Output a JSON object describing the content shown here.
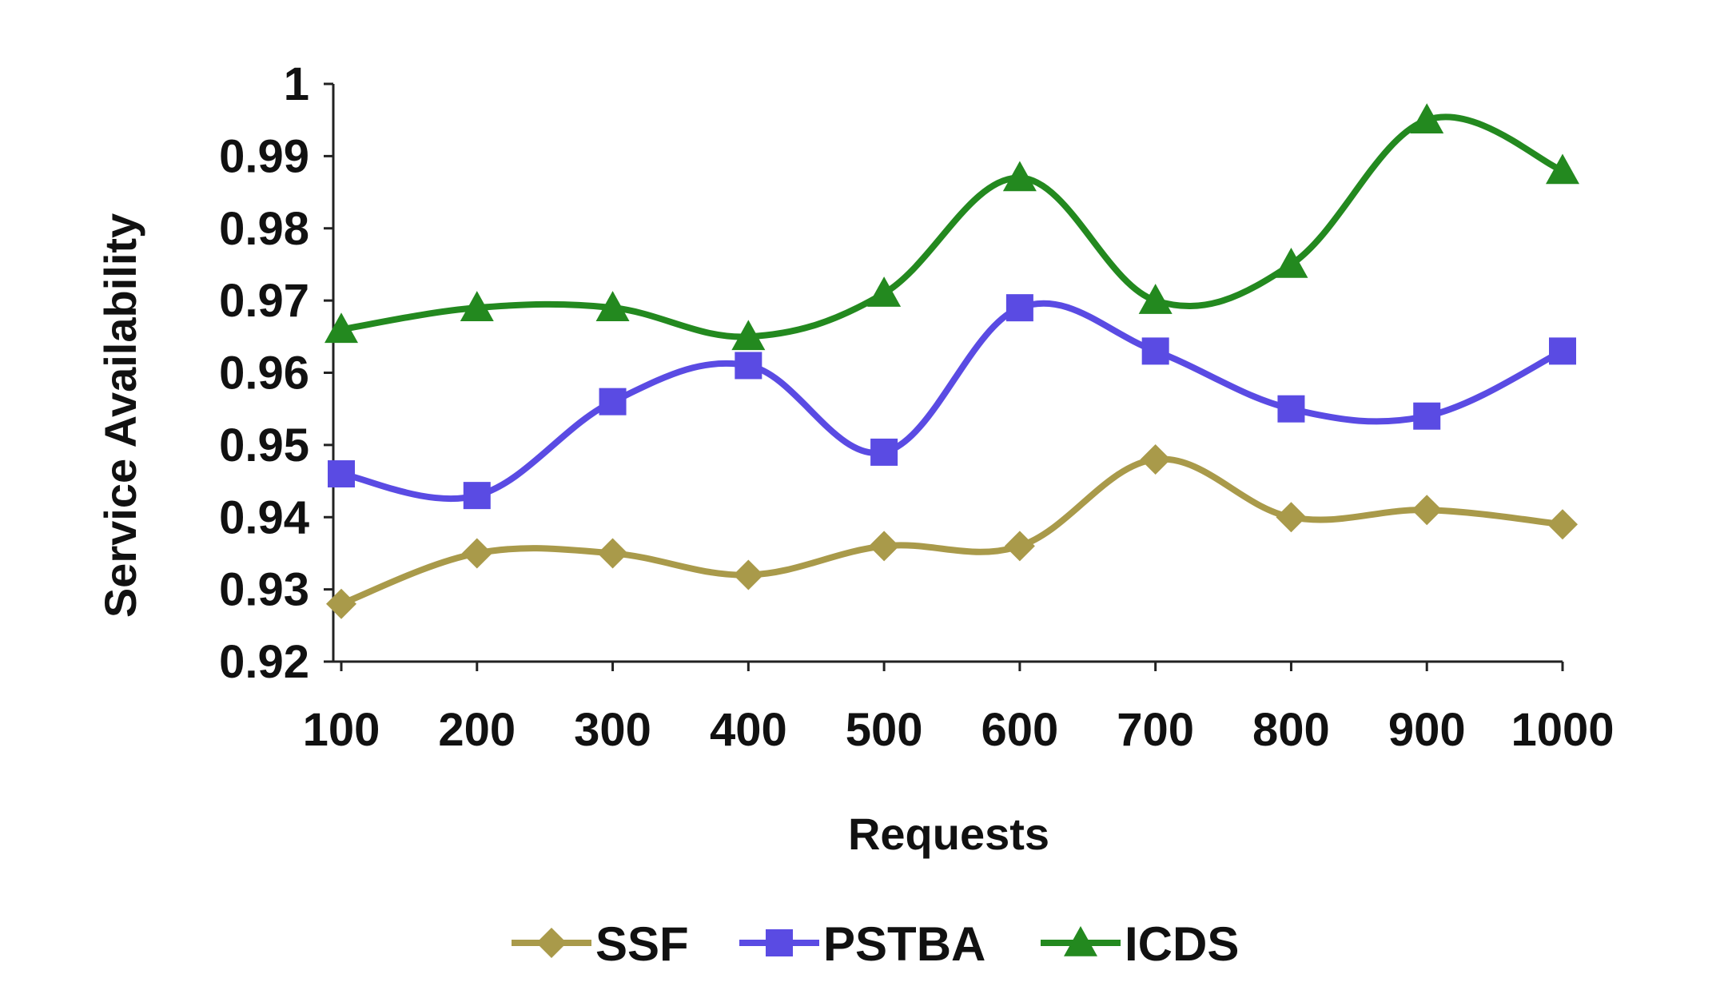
{
  "chart_data": {
    "type": "line",
    "title": "",
    "xlabel": "Requests",
    "ylabel": "Service Availability",
    "x": [
      100,
      200,
      300,
      400,
      500,
      600,
      700,
      800,
      900,
      1000
    ],
    "x_tick_labels": [
      "100",
      "200",
      "300",
      "400",
      "500",
      "600",
      "700",
      "800",
      "900",
      "1000"
    ],
    "ylim": [
      0.92,
      1.0
    ],
    "y_ticks": [
      0.92,
      0.93,
      0.94,
      0.95,
      0.96,
      0.97,
      0.98,
      0.99,
      1.0
    ],
    "y_tick_labels": [
      "0.92",
      "0.93",
      "0.94",
      "0.95",
      "0.96",
      "0.97",
      "0.98",
      "0.99",
      "1"
    ],
    "grid": false,
    "smooth": true,
    "legend_position": "bottom-center",
    "series": [
      {
        "name": "SSF",
        "color": "#a99a4a",
        "marker": "diamond",
        "values": [
          0.928,
          0.935,
          0.935,
          0.932,
          0.936,
          0.936,
          0.948,
          0.94,
          0.941,
          0.939
        ]
      },
      {
        "name": "PSTBA",
        "color": "#5a4be3",
        "marker": "square",
        "values": [
          0.946,
          0.943,
          0.956,
          0.961,
          0.949,
          0.969,
          0.963,
          0.955,
          0.954,
          0.963
        ]
      },
      {
        "name": "ICDS",
        "color": "#23891f",
        "marker": "triangle",
        "values": [
          0.966,
          0.969,
          0.969,
          0.965,
          0.971,
          0.987,
          0.97,
          0.975,
          0.995,
          0.988
        ]
      }
    ]
  }
}
